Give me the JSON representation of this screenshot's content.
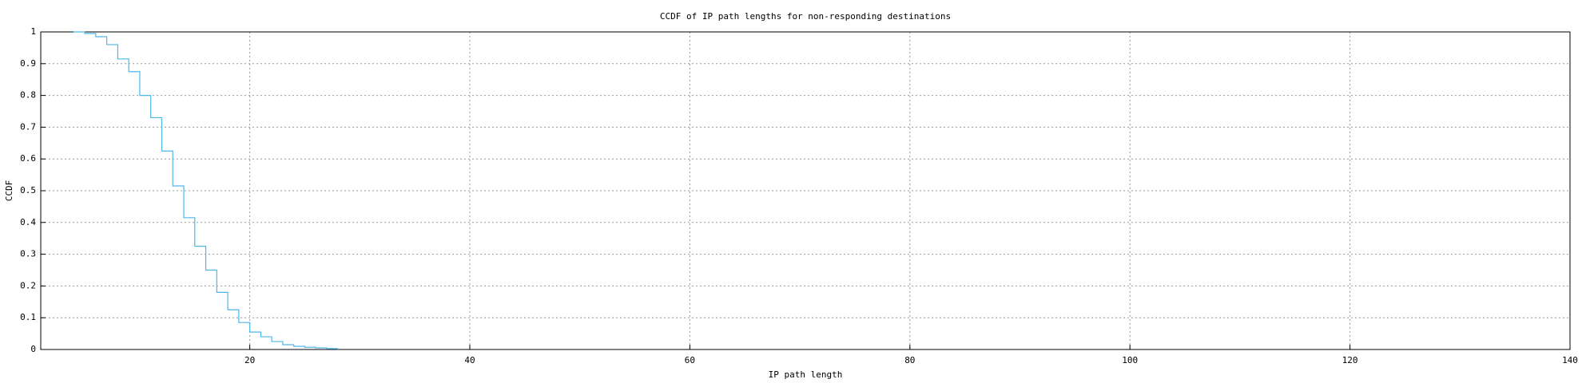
{
  "chart_data": {
    "type": "step",
    "title": "CCDF of IP path lengths for non-responding destinations",
    "xlabel": "IP path length",
    "ylabel": "CCDF",
    "x": [
      4,
      5,
      6,
      7,
      8,
      9,
      10,
      11,
      12,
      13,
      14,
      15,
      16,
      17,
      18,
      19,
      20,
      21,
      22,
      23,
      24,
      25,
      26,
      27,
      28
    ],
    "series": [
      {
        "name": "CCDF",
        "color": "#4db8e8",
        "values": [
          1.0,
          0.995,
          0.985,
          0.96,
          0.915,
          0.875,
          0.8,
          0.73,
          0.625,
          0.515,
          0.415,
          0.325,
          0.25,
          0.18,
          0.125,
          0.085,
          0.055,
          0.04,
          0.025,
          0.015,
          0.01,
          0.007,
          0.005,
          0.003,
          0.0
        ]
      }
    ],
    "xlim": [
      1,
      140
    ],
    "xticks": [
      20,
      40,
      60,
      80,
      100,
      120,
      140
    ],
    "ylim": [
      0,
      1
    ],
    "yticks": [
      0,
      0.1,
      0.2,
      0.3,
      0.4,
      0.5,
      0.6,
      0.7,
      0.8,
      0.9,
      1
    ],
    "grid": true
  }
}
